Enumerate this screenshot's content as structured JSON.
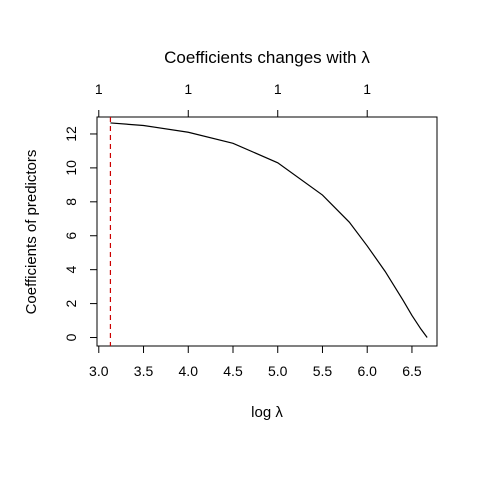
{
  "chart_data": {
    "type": "line",
    "title": "Coefficients changes with λ",
    "xlabel": "log λ",
    "ylabel": "Coefficients of predictors",
    "xlim": [
      2.98,
      6.78
    ],
    "ylim": [
      -0.5,
      13.0
    ],
    "x_ticks": [
      3.0,
      3.5,
      4.0,
      4.5,
      5.0,
      5.5,
      6.0,
      6.5
    ],
    "x_tick_labels": [
      "3.0",
      "3.5",
      "4.0",
      "4.5",
      "5.0",
      "5.5",
      "6.0",
      "6.5"
    ],
    "y_ticks": [
      0,
      2,
      4,
      6,
      8,
      10,
      12
    ],
    "y_tick_labels": [
      "0",
      "2",
      "4",
      "6",
      "8",
      "10",
      "12"
    ],
    "top_axis_ticks": [
      3.0,
      4.0,
      5.0,
      6.0
    ],
    "top_axis_labels": [
      "1",
      "1",
      "1",
      "1"
    ],
    "grid": false,
    "series": [
      {
        "color": "#000000",
        "x": [
          3.13,
          3.5,
          4.0,
          4.5,
          5.0,
          5.5,
          5.8,
          6.0,
          6.2,
          6.4,
          6.5,
          6.6,
          6.67
        ],
        "y": [
          12.65,
          12.5,
          12.1,
          11.45,
          10.3,
          8.4,
          6.8,
          5.4,
          3.9,
          2.2,
          1.3,
          0.5,
          0.0
        ]
      }
    ],
    "vline": {
      "x": 3.13,
      "color": "#cc0000",
      "style": "dashed"
    }
  }
}
